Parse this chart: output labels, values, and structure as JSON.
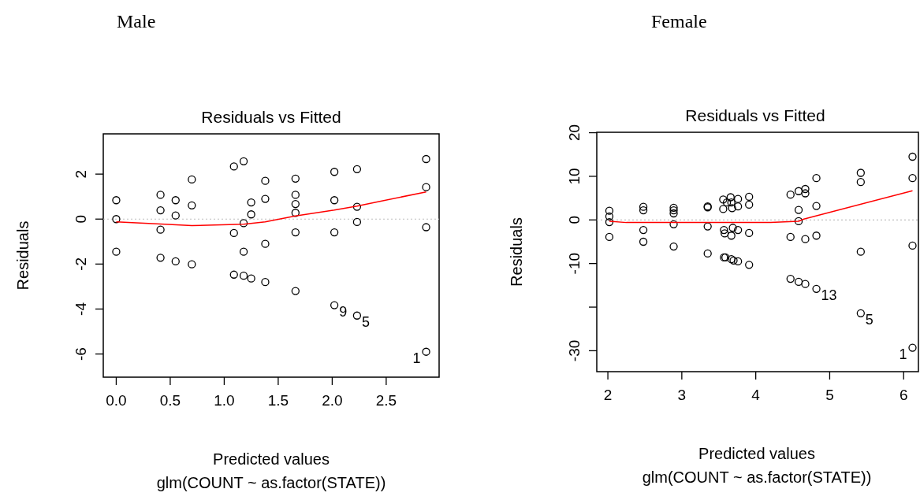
{
  "chart_data": [
    {
      "type": "scatter",
      "subtitle": "Male",
      "title": "Residuals vs Fitted",
      "xlabel": "Predicted values",
      "ylabel": "Residuals",
      "annotations": [
        "glm(COUNT ~ as.factor(STATE))",
        {
          "text": "9",
          "x": 2.02,
          "y": -3.83
        },
        {
          "text": "5",
          "x": 2.23,
          "y": -4.29
        },
        {
          "text": "1",
          "x": 2.87,
          "y": -5.9
        }
      ],
      "xlim": [
        -0.12,
        2.99
      ],
      "xticks": [
        {
          "value": 0,
          "label": "0.0"
        },
        0.5,
        {
          "value": 1,
          "label": "1.0"
        },
        1.5,
        {
          "value": 2,
          "label": "2.0"
        },
        2.5
      ],
      "ylim": [
        -7.03,
        3.79
      ],
      "yticks": [
        -6,
        -4,
        -2,
        0,
        2
      ],
      "ref_lines": [
        {
          "axis": "y",
          "value": 0,
          "color": "#bebebe",
          "line_style": "dotted"
        }
      ],
      "series": [
        {
          "marker": "circle",
          "color": "#000000",
          "x": [
            0,
            0,
            0,
            0.41,
            0.41,
            0.41,
            0.41,
            0.55,
            0.55,
            0.55,
            0.7,
            0.7,
            0.7,
            1.09,
            1.09,
            1.09,
            1.18,
            1.18,
            1.18,
            1.18,
            1.25,
            1.25,
            1.25,
            1.38,
            1.38,
            1.38,
            1.38,
            1.66,
            1.66,
            1.66,
            1.66,
            1.66,
            1.66,
            2.02,
            2.02,
            2.02,
            2.02,
            2.23,
            2.23,
            2.23,
            2.23,
            2.87,
            2.87,
            2.87,
            2.87
          ],
          "values": [
            0.84,
            0,
            -1.45,
            1.08,
            0.39,
            -0.47,
            -1.72,
            0.84,
            0.16,
            -1.88,
            1.76,
            0.61,
            -2.01,
            2.34,
            -0.62,
            -2.47,
            2.57,
            -0.18,
            -1.45,
            -2.52,
            0.74,
            0.21,
            -2.64,
            1.7,
            0.9,
            -1.1,
            -2.8,
            1.8,
            1.08,
            0.67,
            0.28,
            -0.59,
            -3.2,
            2.1,
            0.84,
            -0.59,
            -3.83,
            2.22,
            0.55,
            -0.13,
            -4.29,
            2.67,
            1.42,
            -0.36,
            -5.9
          ]
        },
        {
          "type": "line",
          "color": "#ff0000",
          "x": [
            0,
            0.41,
            0.7,
            1.18,
            1.38,
            1.66,
            2.02,
            2.23,
            2.87
          ],
          "values": [
            -0.12,
            -0.22,
            -0.29,
            -0.23,
            -0.12,
            0.14,
            0.4,
            0.58,
            1.21
          ]
        }
      ]
    },
    {
      "type": "scatter",
      "subtitle": "Female",
      "title": "Residuals vs Fitted",
      "xlabel": "Predicted values",
      "ylabel": "Residuals",
      "annotations": [
        "glm(COUNT ~ as.factor(STATE))",
        {
          "text": "13",
          "x": 4.82,
          "y": -15.8
        },
        {
          "text": "5",
          "x": 5.42,
          "y": -21.4
        },
        {
          "text": "1",
          "x": 6.12,
          "y": -29.3
        }
      ],
      "xlim": [
        1.85,
        6.2
      ],
      "xticks": [
        2,
        3,
        4,
        5,
        6
      ],
      "ylim": [
        -34.8,
        20.1
      ],
      "yticks": [
        -30,
        {
          "value": -20,
          "label": null
        },
        -10,
        0,
        10,
        20
      ],
      "ref_lines": [
        {
          "axis": "y",
          "value": 0,
          "color": "#bebebe",
          "line_style": "dotted"
        }
      ],
      "series": [
        {
          "marker": "circle",
          "color": "#000000",
          "x": [
            2.02,
            2.02,
            2.02,
            2.02,
            2.48,
            2.48,
            2.48,
            2.48,
            2.89,
            2.89,
            2.89,
            2.89,
            2.89,
            3.35,
            3.35,
            3.35,
            3.35,
            3.56,
            3.56,
            3.57,
            3.58,
            3.57,
            3.59,
            3.61,
            3.66,
            3.67,
            3.68,
            3.69,
            3.67,
            3.67,
            3.7,
            3.76,
            3.76,
            3.76,
            3.76,
            3.91,
            3.91,
            3.91,
            3.91,
            4.47,
            4.47,
            4.47,
            4.58,
            4.58,
            4.58,
            4.58,
            4.67,
            4.67,
            4.67,
            4.67,
            4.82,
            4.82,
            4.82,
            4.82,
            5.42,
            5.42,
            5.42,
            5.42,
            6.12,
            6.12,
            6.12,
            6.12
          ],
          "values": [
            2.1,
            0.8,
            -0.5,
            -3.9,
            3,
            2.2,
            -2.3,
            -5,
            2.8,
            2.2,
            1.5,
            -1,
            -6.1,
            3.1,
            2.9,
            -1.5,
            -7.7,
            4.7,
            2.5,
            -2.3,
            -3.1,
            -8.6,
            -8.6,
            4,
            5.2,
            4,
            2.7,
            -1.8,
            -3.6,
            -9,
            -9.3,
            4.8,
            3.1,
            -2.3,
            -9.5,
            5.3,
            3.5,
            -3,
            -10.3,
            5.8,
            -3.9,
            -13.5,
            6.6,
            2.3,
            -0.3,
            -14.2,
            7.1,
            6.1,
            -4.4,
            -14.7,
            9.6,
            3.2,
            -3.6,
            -15.8,
            10.8,
            8.7,
            -7.3,
            -21.4,
            14.5,
            9.6,
            -5.9,
            -29.3
          ]
        },
        {
          "type": "line",
          "color": "#ff0000",
          "x": [
            2.02,
            2.25,
            4.2,
            4.58,
            4.65,
            6.12
          ],
          "values": [
            -0.3,
            -0.6,
            -0.6,
            -0.3,
            0.2,
            6.7
          ]
        }
      ]
    }
  ]
}
